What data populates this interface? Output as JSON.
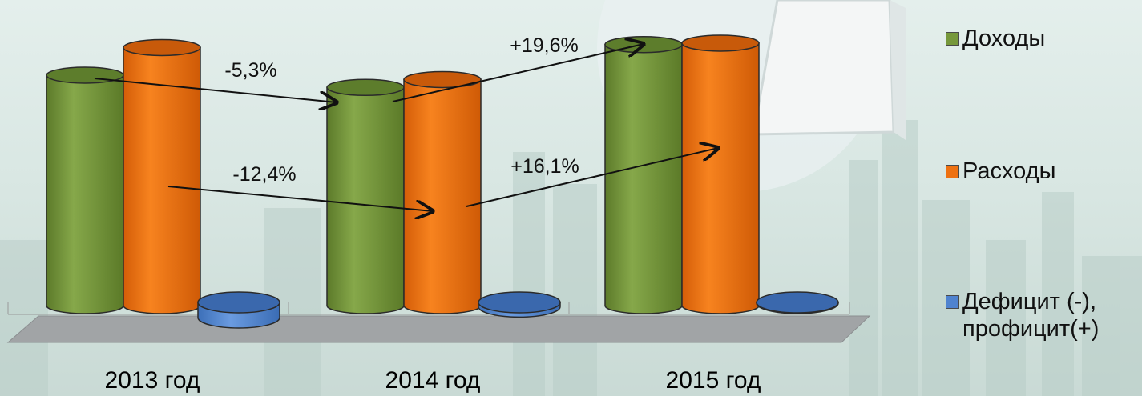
{
  "chart_data": {
    "type": "bar",
    "categories": [
      "2013 год",
      "2014 год",
      "2015 год"
    ],
    "series": [
      {
        "name": "Доходы",
        "values": [
          100,
          94.7,
          113.3
        ],
        "color": "#76983b"
      },
      {
        "name": "Расходы",
        "values": [
          112,
          98.1,
          113.9
        ],
        "color": "#ee7111"
      },
      {
        "name": "Дефицит (-), профицит(+)",
        "values": [
          -12,
          -3.4,
          -0.6
        ],
        "color": "#4f83cf"
      }
    ],
    "annotations": [
      {
        "text": "-5,3%",
        "series": "Доходы",
        "from": "2013 год",
        "to": "2014 год"
      },
      {
        "text": "+19,6%",
        "series": "Доходы",
        "from": "2014 год",
        "to": "2015 год"
      },
      {
        "text": "-12,4%",
        "series": "Расходы",
        "from": "2013 год",
        "to": "2014 год"
      },
      {
        "text": "+16,1%",
        "series": "Расходы",
        "from": "2014 год",
        "to": "2015 год"
      }
    ],
    "title": "",
    "xlabel": "",
    "ylabel": "",
    "ylim": [
      -15,
      125
    ],
    "grid": false,
    "legend_position": "right",
    "style": "3d-cylinder"
  },
  "legend": {
    "items": [
      {
        "label": "Доходы",
        "color": "#76983b"
      },
      {
        "label": "Расходы",
        "color": "#ee7111"
      },
      {
        "label_line1": "Дефицит (-),",
        "label_line2": "профицит(+)",
        "color": "#4f83cf"
      }
    ]
  }
}
